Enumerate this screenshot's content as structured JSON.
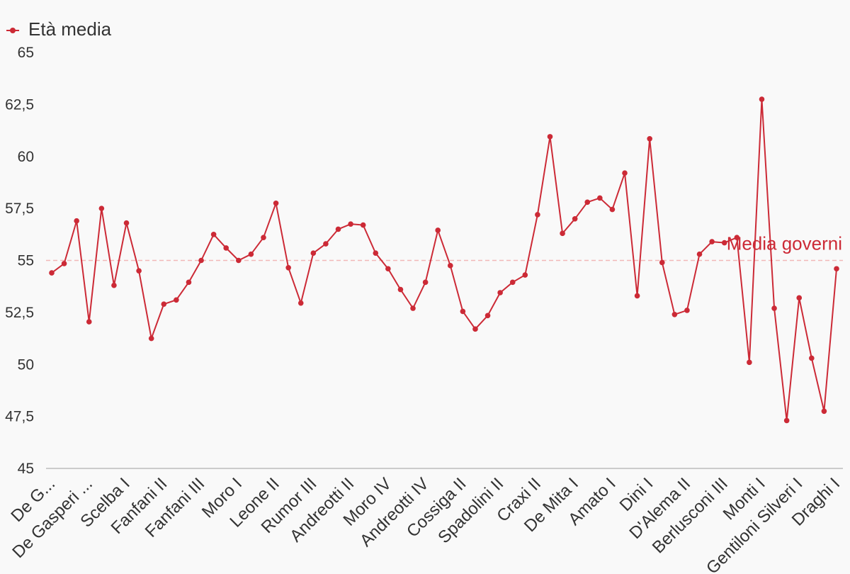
{
  "chart_data": {
    "type": "line",
    "legend": {
      "placement": "top-left",
      "label": "Età media"
    },
    "series": [
      {
        "name": "Età media",
        "color": "#cc2a36",
        "values": [
          54.4,
          54.85,
          56.9,
          52.05,
          57.5,
          53.8,
          56.8,
          54.5,
          51.25,
          52.9,
          53.1,
          53.95,
          55,
          56.25,
          55.6,
          55,
          55.3,
          56.1,
          57.75,
          54.65,
          52.95,
          55.35,
          55.8,
          56.5,
          56.75,
          56.7,
          55.35,
          54.6,
          53.6,
          52.7,
          53.95,
          56.45,
          54.75,
          52.55,
          51.7,
          52.35,
          53.45,
          53.95,
          54.3,
          57.2,
          60.95,
          56.3,
          57,
          57.8,
          58,
          57.45,
          59.2,
          53.3,
          60.85,
          54.9,
          52.4,
          52.6,
          55.3,
          55.9,
          55.85,
          56.1,
          50.1,
          62.75,
          52.7,
          47.3,
          53.2,
          50.3,
          47.75,
          54.6
        ]
      }
    ],
    "x_tick_labels": [
      {
        "index": 0,
        "label": "De G..."
      },
      {
        "index": 3,
        "label": "De Gasperi ..."
      },
      {
        "index": 6,
        "label": "Scelba I"
      },
      {
        "index": 9,
        "label": "Fanfani II"
      },
      {
        "index": 12,
        "label": "Fanfani III"
      },
      {
        "index": 15,
        "label": "Moro I"
      },
      {
        "index": 18,
        "label": "Leone II"
      },
      {
        "index": 21,
        "label": "Rumor III"
      },
      {
        "index": 24,
        "label": "Andreotti II"
      },
      {
        "index": 27,
        "label": "Moro IV"
      },
      {
        "index": 30,
        "label": "Andreotti IV"
      },
      {
        "index": 33,
        "label": "Cossiga II"
      },
      {
        "index": 36,
        "label": "Spadolini II"
      },
      {
        "index": 39,
        "label": "Craxi II"
      },
      {
        "index": 42,
        "label": "De Mita I"
      },
      {
        "index": 45,
        "label": "Amato I"
      },
      {
        "index": 48,
        "label": "Dini I"
      },
      {
        "index": 51,
        "label": "D'Alema II"
      },
      {
        "index": 54,
        "label": "Berlusconi III"
      },
      {
        "index": 57,
        "label": "Monti I"
      },
      {
        "index": 60,
        "label": "Gentiloni Silveri I"
      },
      {
        "index": 63,
        "label": "Draghi I"
      }
    ],
    "y_ticks": [
      45,
      47.5,
      50,
      52.5,
      55,
      57.5,
      60,
      62.5,
      65
    ],
    "y_tick_labels": [
      "45",
      "47,5",
      "50",
      "52,5",
      "55",
      "57,5",
      "60",
      "62,5",
      "65"
    ],
    "ylim": [
      45,
      65
    ],
    "reference_line": {
      "value": 55,
      "label": "Media governi",
      "color": "#cc2a36",
      "line_color": "#f2b8b8"
    },
    "grid": false,
    "title": "",
    "xlabel": "",
    "ylabel": ""
  }
}
